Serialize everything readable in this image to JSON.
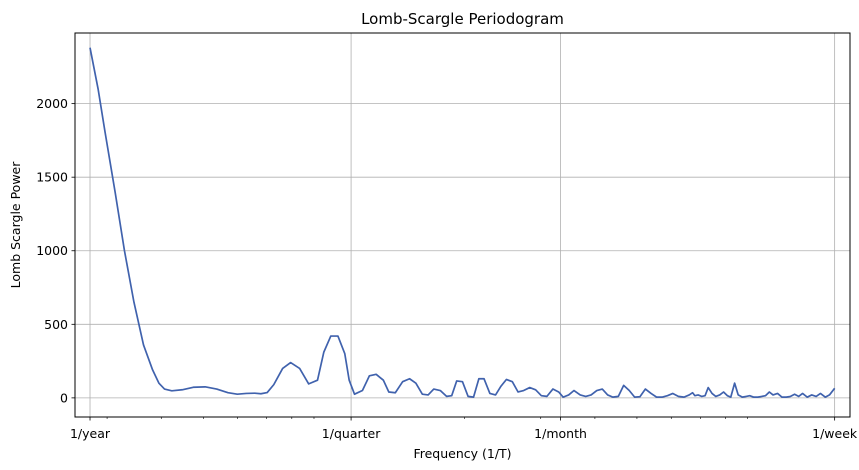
{
  "chart_data": {
    "type": "line",
    "title": "Lomb-Scargle Periodogram",
    "xlabel": "Frequency (1/T)",
    "ylabel": "Lomb Scargle Power",
    "x_scale": "log",
    "x_unit": "cycles per day",
    "xlim": [
      0.00253,
      0.155
    ],
    "ylim": [
      -130,
      2480
    ],
    "grid": true,
    "line_color": "#4062ad",
    "x_ticks": [
      {
        "value": 0.00274,
        "label": "1/year"
      },
      {
        "value": 0.01096,
        "label": "1/quarter"
      },
      {
        "value": 0.03333,
        "label": "1/month"
      },
      {
        "value": 0.14286,
        "label": "1/week"
      }
    ],
    "y_ticks": [
      {
        "value": 0,
        "label": "0"
      },
      {
        "value": 500,
        "label": "500"
      },
      {
        "value": 1000,
        "label": "1000"
      },
      {
        "value": 1500,
        "label": "1500"
      },
      {
        "value": 2000,
        "label": "2000"
      }
    ],
    "series": [
      {
        "x": [
          0.00274,
          0.00286,
          0.00297,
          0.00313,
          0.00329,
          0.00346,
          0.00364,
          0.00382,
          0.00395,
          0.00407,
          0.00423,
          0.00447,
          0.00474,
          0.00505,
          0.00537,
          0.0057,
          0.00599,
          0.00628,
          0.00657,
          0.00679,
          0.00702,
          0.00727,
          0.00762,
          0.00795,
          0.00834,
          0.00875,
          0.00917,
          0.00948,
          0.00984,
          0.01022,
          0.0106,
          0.01085,
          0.01116,
          0.01164,
          0.01208,
          0.01252,
          0.01301,
          0.01339,
          0.01386,
          0.01441,
          0.01495,
          0.01546,
          0.016,
          0.0165,
          0.017,
          0.0176,
          0.0182,
          0.0187,
          0.0192,
          0.0198,
          0.0204,
          0.021,
          0.0216,
          0.0222,
          0.0229,
          0.0236,
          0.0243,
          0.025,
          0.0258,
          0.0266,
          0.0274,
          0.0283,
          0.0292,
          0.0301,
          0.031,
          0.032,
          0.033,
          0.0338,
          0.0348,
          0.0358,
          0.037,
          0.0381,
          0.0392,
          0.0404,
          0.0416,
          0.0428,
          0.044,
          0.0453,
          0.0466,
          0.048,
          0.0494,
          0.0508,
          0.0523,
          0.0539,
          0.0555,
          0.0571,
          0.0588,
          0.0605,
          0.0623,
          0.0642,
          0.066,
          0.0672,
          0.068,
          0.0692,
          0.0705,
          0.0718,
          0.073,
          0.0745,
          0.076,
          0.0776,
          0.0792,
          0.0808,
          0.0823,
          0.084,
          0.0856,
          0.0875,
          0.0893,
          0.091,
          0.093,
          0.095,
          0.097,
          0.099,
          0.101,
          0.103,
          0.1055,
          0.108,
          0.1105,
          0.113,
          0.1155,
          0.118,
          0.1205,
          0.1235,
          0.1265,
          0.1295,
          0.1325,
          0.136,
          0.139,
          0.14286
        ],
        "y": [
          2380,
          2100,
          1800,
          1400,
          1000,
          650,
          360,
          190,
          100,
          60,
          48,
          55,
          72,
          75,
          60,
          35,
          25,
          30,
          32,
          28,
          36,
          90,
          200,
          240,
          200,
          95,
          120,
          310,
          420,
          420,
          300,
          120,
          25,
          50,
          150,
          160,
          120,
          40,
          35,
          110,
          130,
          100,
          25,
          20,
          60,
          50,
          10,
          15,
          115,
          110,
          10,
          5,
          130,
          130,
          30,
          20,
          80,
          125,
          110,
          40,
          50,
          70,
          55,
          15,
          10,
          60,
          40,
          5,
          20,
          50,
          20,
          10,
          20,
          50,
          60,
          20,
          5,
          10,
          85,
          50,
          5,
          8,
          60,
          30,
          5,
          5,
          15,
          30,
          10,
          5,
          20,
          35,
          15,
          20,
          10,
          15,
          70,
          30,
          10,
          20,
          40,
          15,
          5,
          100,
          20,
          5,
          10,
          15,
          5,
          5,
          10,
          15,
          40,
          20,
          30,
          5,
          5,
          10,
          25,
          10,
          30,
          5,
          20,
          10,
          30,
          5,
          20,
          65
        ]
      }
    ]
  }
}
